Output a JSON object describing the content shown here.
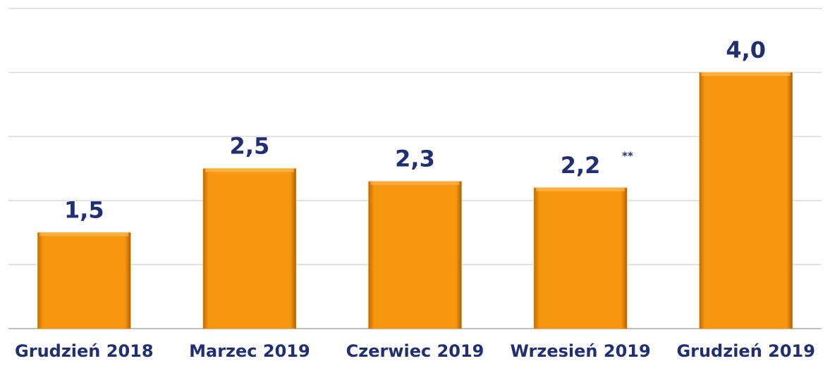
{
  "chart_data": {
    "type": "bar",
    "categories": [
      "Grudzień 2018",
      "Marzec 2019",
      "Czerwiec 2019",
      "Wrzesień 2019",
      "Grudzień 2019"
    ],
    "values": [
      1.5,
      2.5,
      2.3,
      2.2,
      4.0
    ],
    "value_labels": [
      "1,5",
      "2,5",
      "2,3",
      "2,2",
      "4,0"
    ],
    "annotation": "**",
    "color": "#f7960f",
    "ylim": [
      0,
      5
    ],
    "yticks": [
      0,
      1,
      2,
      3,
      4,
      5
    ],
    "grid": true
  }
}
